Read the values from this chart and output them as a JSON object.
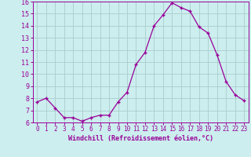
{
  "x": [
    0,
    1,
    2,
    3,
    4,
    5,
    6,
    7,
    8,
    9,
    10,
    11,
    12,
    13,
    14,
    15,
    16,
    17,
    18,
    19,
    20,
    21,
    22,
    23
  ],
  "y": [
    7.7,
    8.0,
    7.2,
    6.4,
    6.4,
    6.1,
    6.4,
    6.6,
    6.6,
    7.7,
    8.5,
    10.8,
    11.8,
    14.0,
    14.9,
    15.9,
    15.5,
    15.2,
    13.9,
    13.4,
    11.6,
    9.4,
    8.3,
    7.8
  ],
  "ylim": [
    6,
    16
  ],
  "yticks": [
    6,
    7,
    8,
    9,
    10,
    11,
    12,
    13,
    14,
    15,
    16
  ],
  "xticks": [
    0,
    1,
    2,
    3,
    4,
    5,
    6,
    7,
    8,
    9,
    10,
    11,
    12,
    13,
    14,
    15,
    16,
    17,
    18,
    19,
    20,
    21,
    22,
    23
  ],
  "xlabel": "Windchill (Refroidissement éolien,°C)",
  "line_color": "#990099",
  "marker": "+",
  "bg_color": "#cceeee",
  "grid_color": "#aacccc",
  "label_color": "#990099",
  "tick_color": "#990099",
  "spine_color": "#990099",
  "tick_fontsize": 5.5,
  "xlabel_fontsize": 6.0,
  "ytick_fontsize": 6.0
}
